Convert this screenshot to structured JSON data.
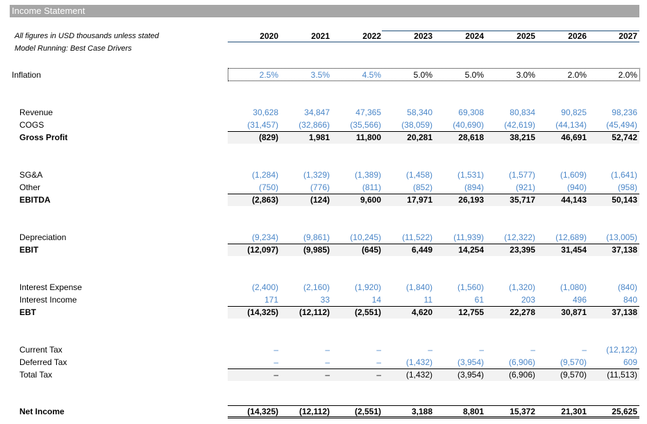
{
  "title": "Income Statement",
  "note_units": "All figures in USD thousands unless stated",
  "note_model": "Model Running: Best Case Drivers",
  "years": [
    "2020",
    "2021",
    "2022",
    "2023",
    "2024",
    "2025",
    "2026",
    "2027"
  ],
  "colors": {
    "input_blue": "#4a86c8",
    "title_bar": "#a6a6a6",
    "total_band": "#f2f2f2"
  },
  "rows": [
    {
      "id": "inflation",
      "label": "Inflation",
      "top": 0,
      "style": "inflation",
      "values": [
        "2.5%",
        "3.5%",
        "4.5%",
        "5.0%",
        "5.0%",
        "3.0%",
        "2.0%",
        "2.0%"
      ],
      "kinds": [
        "input",
        "input",
        "input",
        "calc",
        "calc",
        "calc",
        "calc",
        "calc"
      ]
    },
    {
      "id": "revenue",
      "label": "Revenue",
      "style": "normal",
      "values": [
        "30,628",
        "34,847",
        "47,365",
        "58,340",
        "69,308",
        "80,834",
        "90,825",
        "98,236"
      ],
      "kind": "input"
    },
    {
      "id": "cogs",
      "label": "COGS",
      "style": "normal",
      "values": [
        "(31,457)",
        "(32,866)",
        "(35,566)",
        "(38,059)",
        "(40,690)",
        "(42,619)",
        "(44,134)",
        "(45,494)"
      ],
      "kind": "input"
    },
    {
      "id": "gross-profit",
      "label": "Gross Profit",
      "style": "total",
      "values": [
        "(829)",
        "1,981",
        "11,800",
        "20,281",
        "28,618",
        "38,215",
        "46,691",
        "52,742"
      ],
      "kind": "calc"
    },
    {
      "id": "sga",
      "label": "SG&A",
      "style": "normal",
      "values": [
        "(1,284)",
        "(1,329)",
        "(1,389)",
        "(1,458)",
        "(1,531)",
        "(1,577)",
        "(1,609)",
        "(1,641)"
      ],
      "kind": "input"
    },
    {
      "id": "other",
      "label": "Other",
      "style": "normal",
      "values": [
        "(750)",
        "(776)",
        "(811)",
        "(852)",
        "(894)",
        "(921)",
        "(940)",
        "(958)"
      ],
      "kind": "input"
    },
    {
      "id": "ebitda",
      "label": "EBITDA",
      "style": "total",
      "values": [
        "(2,863)",
        "(124)",
        "9,600",
        "17,971",
        "26,193",
        "35,717",
        "44,143",
        "50,143"
      ],
      "kind": "calc"
    },
    {
      "id": "depreciation",
      "label": "Depreciation",
      "style": "normal",
      "values": [
        "(9,234)",
        "(9,861)",
        "(10,245)",
        "(11,522)",
        "(11,939)",
        "(12,322)",
        "(12,689)",
        "(13,005)"
      ],
      "kind": "input"
    },
    {
      "id": "ebit",
      "label": "EBIT",
      "style": "total",
      "values": [
        "(12,097)",
        "(9,985)",
        "(645)",
        "6,449",
        "14,254",
        "23,395",
        "31,454",
        "37,138"
      ],
      "kind": "calc"
    },
    {
      "id": "interest-expense",
      "label": "Interest Expense",
      "style": "normal",
      "values": [
        "(2,400)",
        "(2,160)",
        "(1,920)",
        "(1,840)",
        "(1,560)",
        "(1,320)",
        "(1,080)",
        "(840)"
      ],
      "kind": "input"
    },
    {
      "id": "interest-income",
      "label": "Interest Income",
      "style": "normal",
      "values": [
        "171",
        "33",
        "14",
        "11",
        "61",
        "203",
        "496",
        "840"
      ],
      "kind": "input"
    },
    {
      "id": "ebt",
      "label": "EBT",
      "style": "total",
      "values": [
        "(14,325)",
        "(12,112)",
        "(2,551)",
        "4,620",
        "12,755",
        "22,278",
        "30,871",
        "37,138"
      ],
      "kind": "calc"
    },
    {
      "id": "current-tax",
      "label": "Current Tax",
      "style": "normal",
      "values": [
        "–",
        "–",
        "–",
        "–",
        "–",
        "–",
        "–",
        "(12,122)"
      ],
      "kind": "input"
    },
    {
      "id": "deferred-tax",
      "label": "Deferred Tax",
      "style": "normal",
      "values": [
        "–",
        "–",
        "–",
        "(1,432)",
        "(3,954)",
        "(6,906)",
        "(9,570)",
        "609"
      ],
      "kind": "input"
    },
    {
      "id": "total-tax",
      "label": "Total Tax",
      "style": "subtotal",
      "values": [
        "–",
        "–",
        "–",
        "(1,432)",
        "(3,954)",
        "(6,906)",
        "(9,570)",
        "(11,513)"
      ],
      "kind": "calc"
    },
    {
      "id": "net-income",
      "label": "Net Income",
      "style": "net",
      "values": [
        "(14,325)",
        "(12,112)",
        "(2,551)",
        "3,188",
        "8,801",
        "15,372",
        "21,301",
        "25,625"
      ],
      "kind": "calc"
    }
  ]
}
